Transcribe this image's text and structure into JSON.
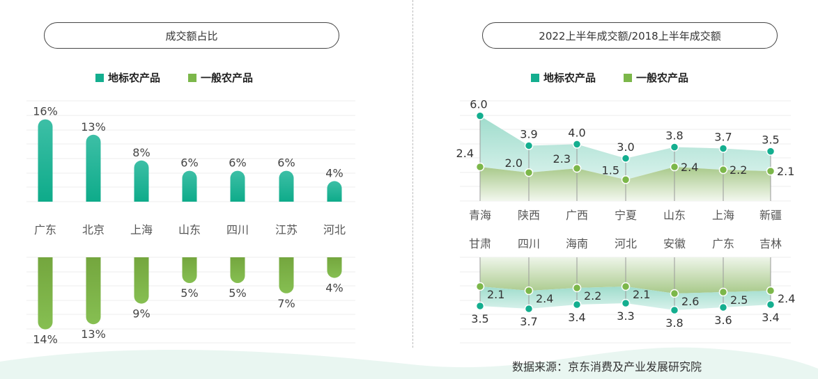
{
  "colors": {
    "geo": "#14ae8f",
    "general": "#7cb74a"
  },
  "legend": {
    "geo": "地标农产品",
    "general": "一般农产品"
  },
  "source": "数据来源：京东消费及产业发展研究院",
  "chart_data": [
    {
      "type": "bar",
      "title": "成交额占比",
      "categories": [
        "广东",
        "北京",
        "上海",
        "山东",
        "四川",
        "江苏",
        "河北"
      ],
      "series": [
        {
          "name": "地标农产品",
          "values": [
            16,
            13,
            8,
            6,
            6,
            6,
            4
          ]
        },
        {
          "name": "一般农产品",
          "values": [
            14,
            13,
            9,
            5,
            5,
            7,
            4
          ]
        }
      ],
      "unit": "%",
      "grid": true,
      "legend": "top"
    },
    {
      "type": "area",
      "title": "2022上半年成交额/2018上半年成交额",
      "panels": [
        {
          "categories": [
            "青海",
            "陕西",
            "广西",
            "宁夏",
            "山东",
            "上海",
            "新疆"
          ],
          "series": [
            {
              "name": "地标农产品",
              "values": [
                6.0,
                3.9,
                4.0,
                3.0,
                3.8,
                3.7,
                3.5
              ]
            },
            {
              "name": "一般农产品",
              "values": [
                2.4,
                2.0,
                2.3,
                1.5,
                2.4,
                2.2,
                2.1
              ]
            }
          ]
        },
        {
          "categories": [
            "甘肃",
            "四川",
            "海南",
            "河北",
            "安徽",
            "广东",
            "吉林"
          ],
          "series": [
            {
              "name": "地标农产品",
              "values": [
                3.5,
                3.7,
                3.4,
                3.3,
                3.8,
                3.6,
                3.4
              ]
            },
            {
              "name": "一般农产品",
              "values": [
                2.1,
                2.4,
                2.2,
                2.1,
                2.6,
                2.5,
                2.4
              ]
            }
          ]
        }
      ],
      "grid": true,
      "legend": "top"
    }
  ]
}
